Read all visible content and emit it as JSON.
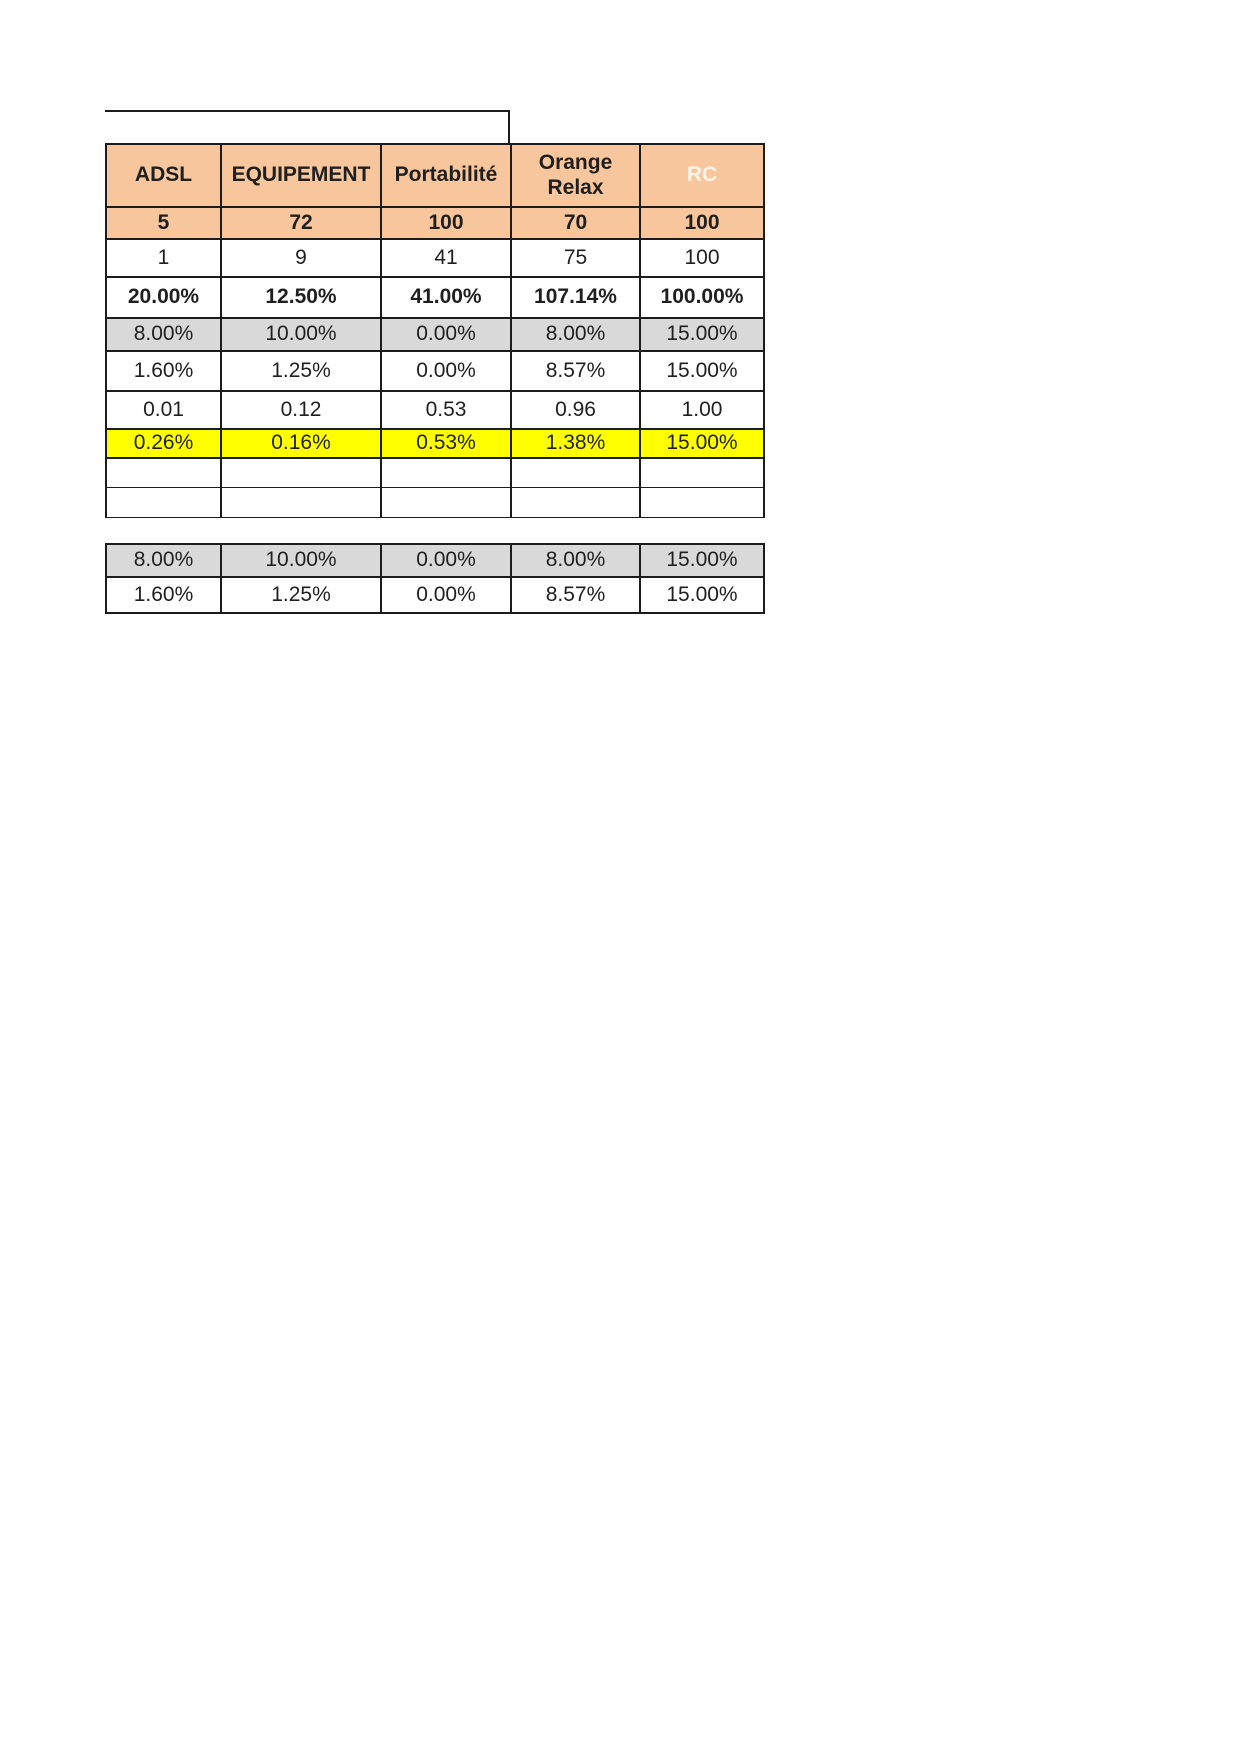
{
  "page": {
    "background": "#FFFFFF",
    "description": "document page with pricing/ratio table"
  },
  "colors": {
    "header_bg": "#F7C69C",
    "gray_row_bg": "#D9D9D9",
    "highlight_row_bg": "#FFFF00",
    "border": "#1C1C1C",
    "rc_header_text": "#FDF4E9",
    "text": "#1F1F1F"
  },
  "table": {
    "columns": [
      "ADSL",
      "EQUIPEMENT",
      "Portabilité",
      "Orange Relax",
      "RC"
    ],
    "rows": [
      {
        "style": "orange-bold",
        "cells": [
          "5",
          "72",
          "100",
          "70",
          "100"
        ]
      },
      {
        "style": "plain",
        "cells": [
          "1",
          "9",
          "41",
          "75",
          "100"
        ]
      },
      {
        "style": "bold",
        "cells": [
          "20.00%",
          "12.50%",
          "41.00%",
          "107.14%",
          "100.00%"
        ]
      },
      {
        "style": "gray",
        "cells": [
          "8.00%",
          "10.00%",
          "0.00%",
          "8.00%",
          "15.00%"
        ]
      },
      {
        "style": "plain",
        "cells": [
          "1.60%",
          "1.25%",
          "0.00%",
          "8.57%",
          "15.00%"
        ]
      },
      {
        "style": "plain",
        "cells": [
          "0.01",
          "0.12",
          "0.53",
          "0.96",
          "1.00"
        ]
      },
      {
        "style": "yellow",
        "cells": [
          "0.26%",
          "0.16%",
          "0.53%",
          "1.38%",
          "15.00%"
        ]
      },
      {
        "style": "empty",
        "cells": [
          "",
          "",
          "",
          "",
          ""
        ]
      },
      {
        "style": "empty",
        "cells": [
          "",
          "",
          "",
          "",
          ""
        ]
      },
      {
        "style": "gray",
        "cells": [
          "8.00%",
          "10.00%",
          "0.00%",
          "8.00%",
          "15.00%"
        ]
      },
      {
        "style": "plain",
        "cells": [
          "1.60%",
          "1.25%",
          "0.00%",
          "8.57%",
          "15.00%"
        ]
      }
    ]
  }
}
